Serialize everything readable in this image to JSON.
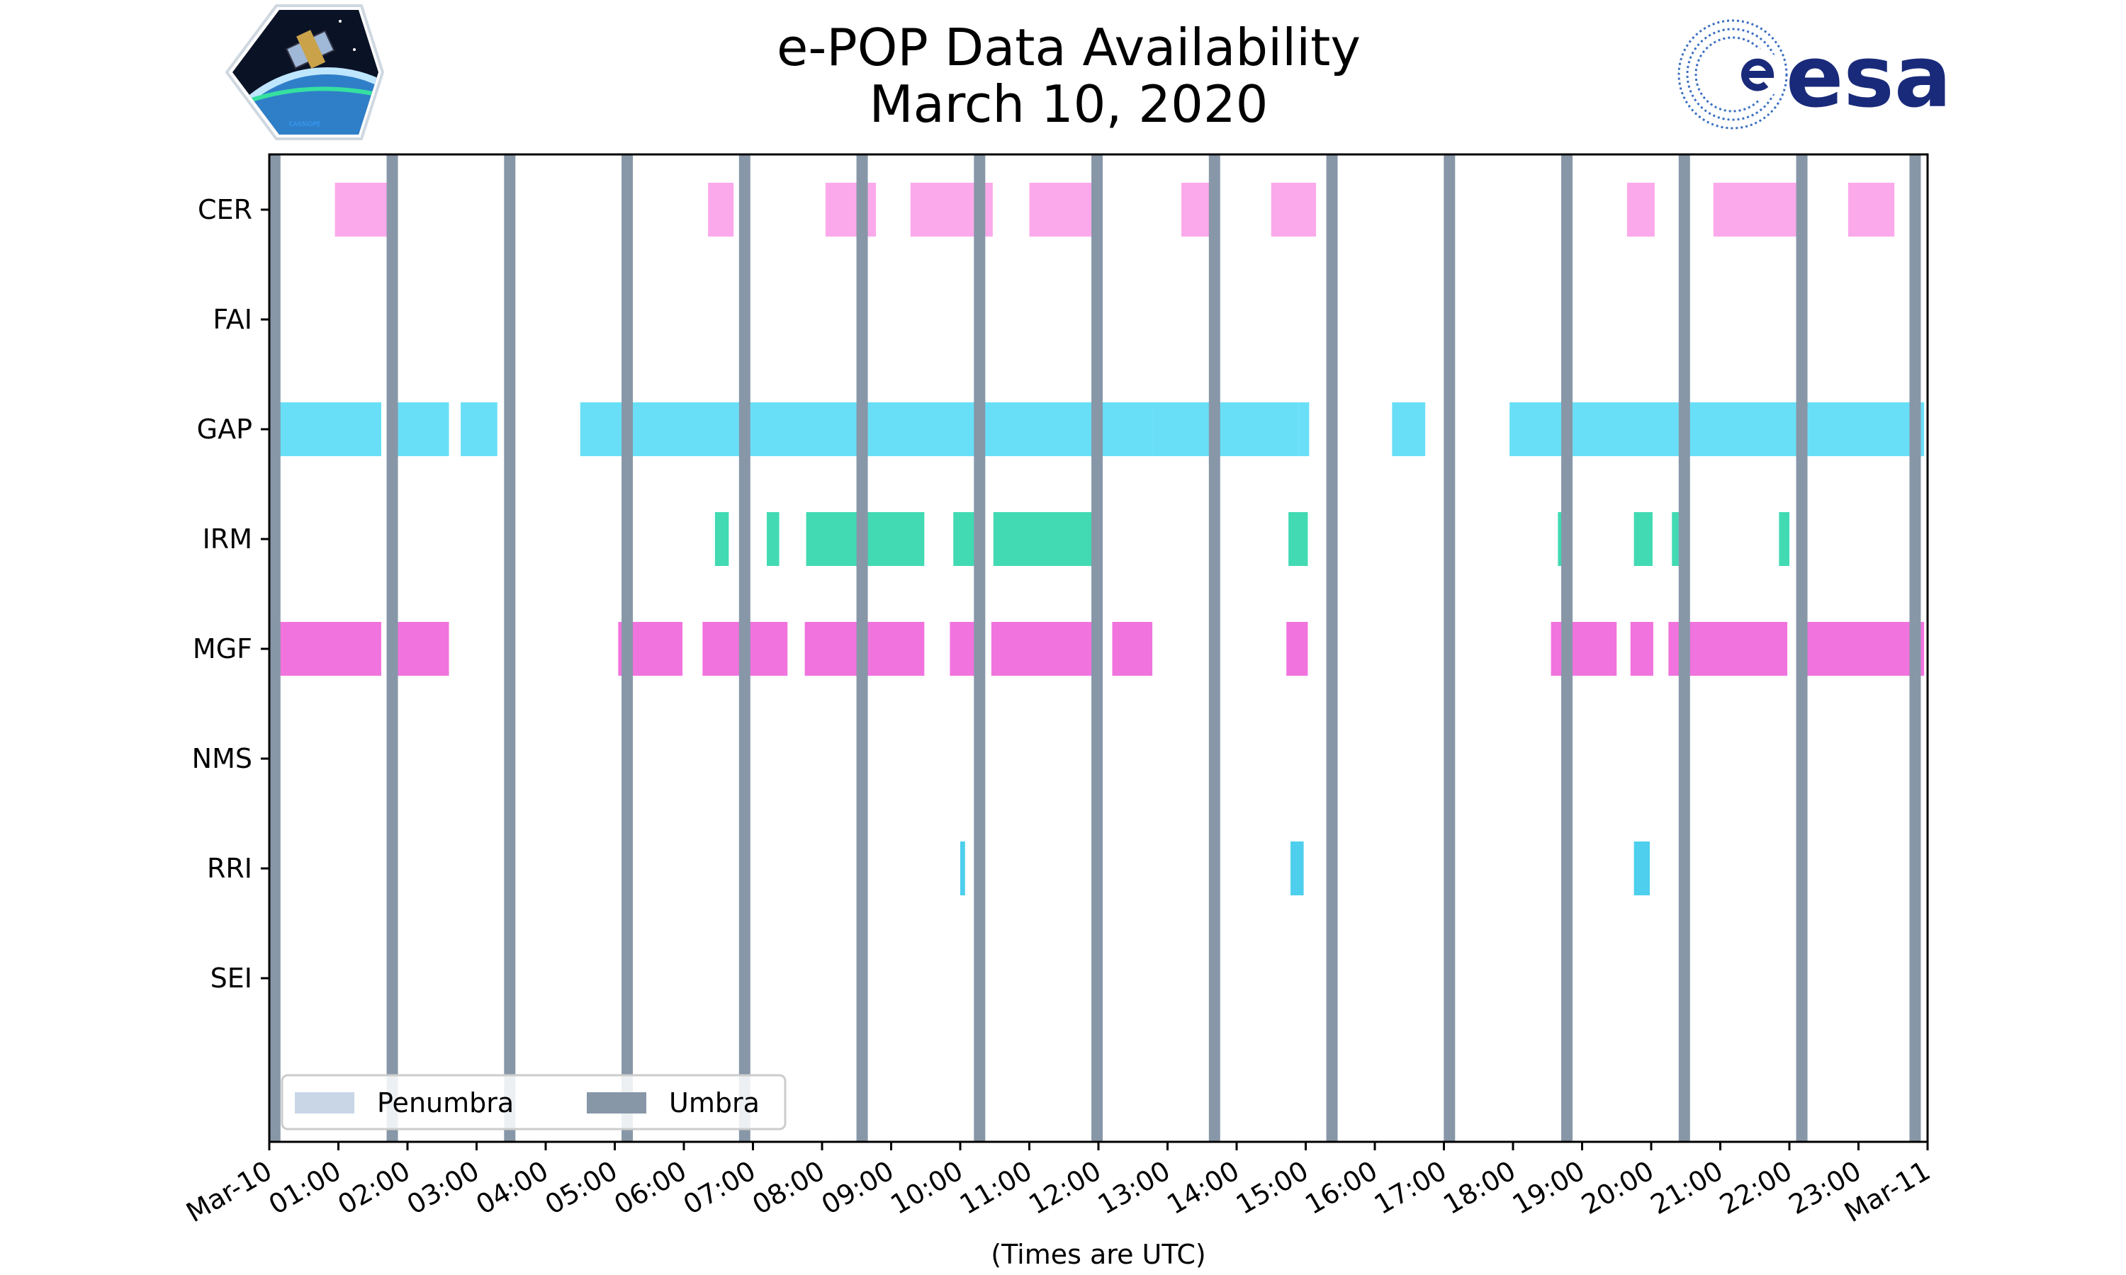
{
  "chart_data": {
    "type": "timeline",
    "title": [
      "e-POP Data Availability",
      "March 10, 2020"
    ],
    "xlabel": "(Times are UTC)",
    "xlim": [
      0,
      24
    ],
    "x_tick_labels": [
      "Mar-10",
      "01:00",
      "02:00",
      "03:00",
      "04:00",
      "05:00",
      "06:00",
      "07:00",
      "08:00",
      "09:00",
      "10:00",
      "11:00",
      "12:00",
      "13:00",
      "14:00",
      "15:00",
      "16:00",
      "17:00",
      "18:00",
      "19:00",
      "20:00",
      "21:00",
      "22:00",
      "23:00",
      "Mar-11"
    ],
    "categories": [
      "CER",
      "FAI",
      "GAP",
      "IRM",
      "MGF",
      "NMS",
      "RRI",
      "SEI"
    ],
    "series": [
      {
        "instrument": "CER",
        "color": "#fb9ae8",
        "intervals": [
          [
            0.95,
            1.72
          ],
          [
            6.35,
            6.72
          ],
          [
            8.05,
            8.78
          ],
          [
            9.28,
            10.47
          ],
          [
            11.0,
            11.95
          ],
          [
            13.2,
            13.62
          ],
          [
            14.5,
            15.15
          ],
          [
            19.65,
            20.05
          ],
          [
            20.9,
            22.12
          ],
          [
            22.85,
            23.52
          ]
        ]
      },
      {
        "instrument": "FAI",
        "color": "#cccccc",
        "intervals": []
      },
      {
        "instrument": "GAP",
        "color": "#4fd9f6",
        "intervals": [
          [
            0.0,
            1.62
          ],
          [
            1.8,
            2.6
          ],
          [
            2.77,
            3.3
          ],
          [
            4.5,
            12.78
          ],
          [
            12.78,
            14.9
          ],
          [
            14.9,
            15.05
          ],
          [
            16.25,
            16.73
          ],
          [
            17.95,
            23.95
          ]
        ]
      },
      {
        "instrument": "IRM",
        "color": "#20d4a4",
        "intervals": [
          [
            6.45,
            6.65
          ],
          [
            7.2,
            7.38
          ],
          [
            7.77,
            9.48
          ],
          [
            9.9,
            10.27
          ],
          [
            10.48,
            11.98
          ],
          [
            14.75,
            15.03
          ],
          [
            18.65,
            18.83
          ],
          [
            19.75,
            20.02
          ],
          [
            20.3,
            20.45
          ],
          [
            21.85,
            22.0
          ]
        ]
      },
      {
        "instrument": "MGF",
        "color": "#ee5ad8",
        "intervals": [
          [
            0.0,
            1.62
          ],
          [
            1.83,
            2.6
          ],
          [
            5.05,
            5.98
          ],
          [
            6.27,
            6.8
          ],
          [
            6.95,
            7.5
          ],
          [
            7.75,
            9.48
          ],
          [
            9.85,
            10.27
          ],
          [
            10.45,
            11.97
          ],
          [
            12.2,
            12.78
          ],
          [
            14.72,
            15.03
          ],
          [
            18.55,
            19.5
          ],
          [
            19.7,
            20.03
          ],
          [
            20.25,
            21.97
          ],
          [
            22.2,
            23.95
          ]
        ]
      },
      {
        "instrument": "NMS",
        "color": "#cccccc",
        "intervals": []
      },
      {
        "instrument": "RRI",
        "color": "#2ec7ea",
        "intervals": [
          [
            10.0,
            10.07
          ],
          [
            14.78,
            14.97
          ],
          [
            19.75,
            19.98
          ]
        ]
      },
      {
        "instrument": "SEI",
        "color": "#cccccc",
        "intervals": []
      }
    ],
    "umbra_times": [
      0.08,
      1.78,
      3.48,
      5.18,
      6.88,
      8.58,
      10.28,
      11.98,
      13.68,
      15.38,
      17.08,
      18.78,
      20.48,
      22.18,
      23.82
    ],
    "umbra_color": "#8797a8",
    "penumbra_color": "#c8d6e6",
    "legend": {
      "position": "lower-left",
      "entries": [
        {
          "label": "Penumbra",
          "color": "#c8d6e6"
        },
        {
          "label": "Umbra",
          "color": "#8797a8"
        }
      ]
    },
    "grid": false
  },
  "logos": {
    "left": {
      "name": "cassiope-mission-logo",
      "text": "CASSIOPE"
    },
    "right": {
      "name": "esa-logo",
      "text": "esa"
    }
  }
}
